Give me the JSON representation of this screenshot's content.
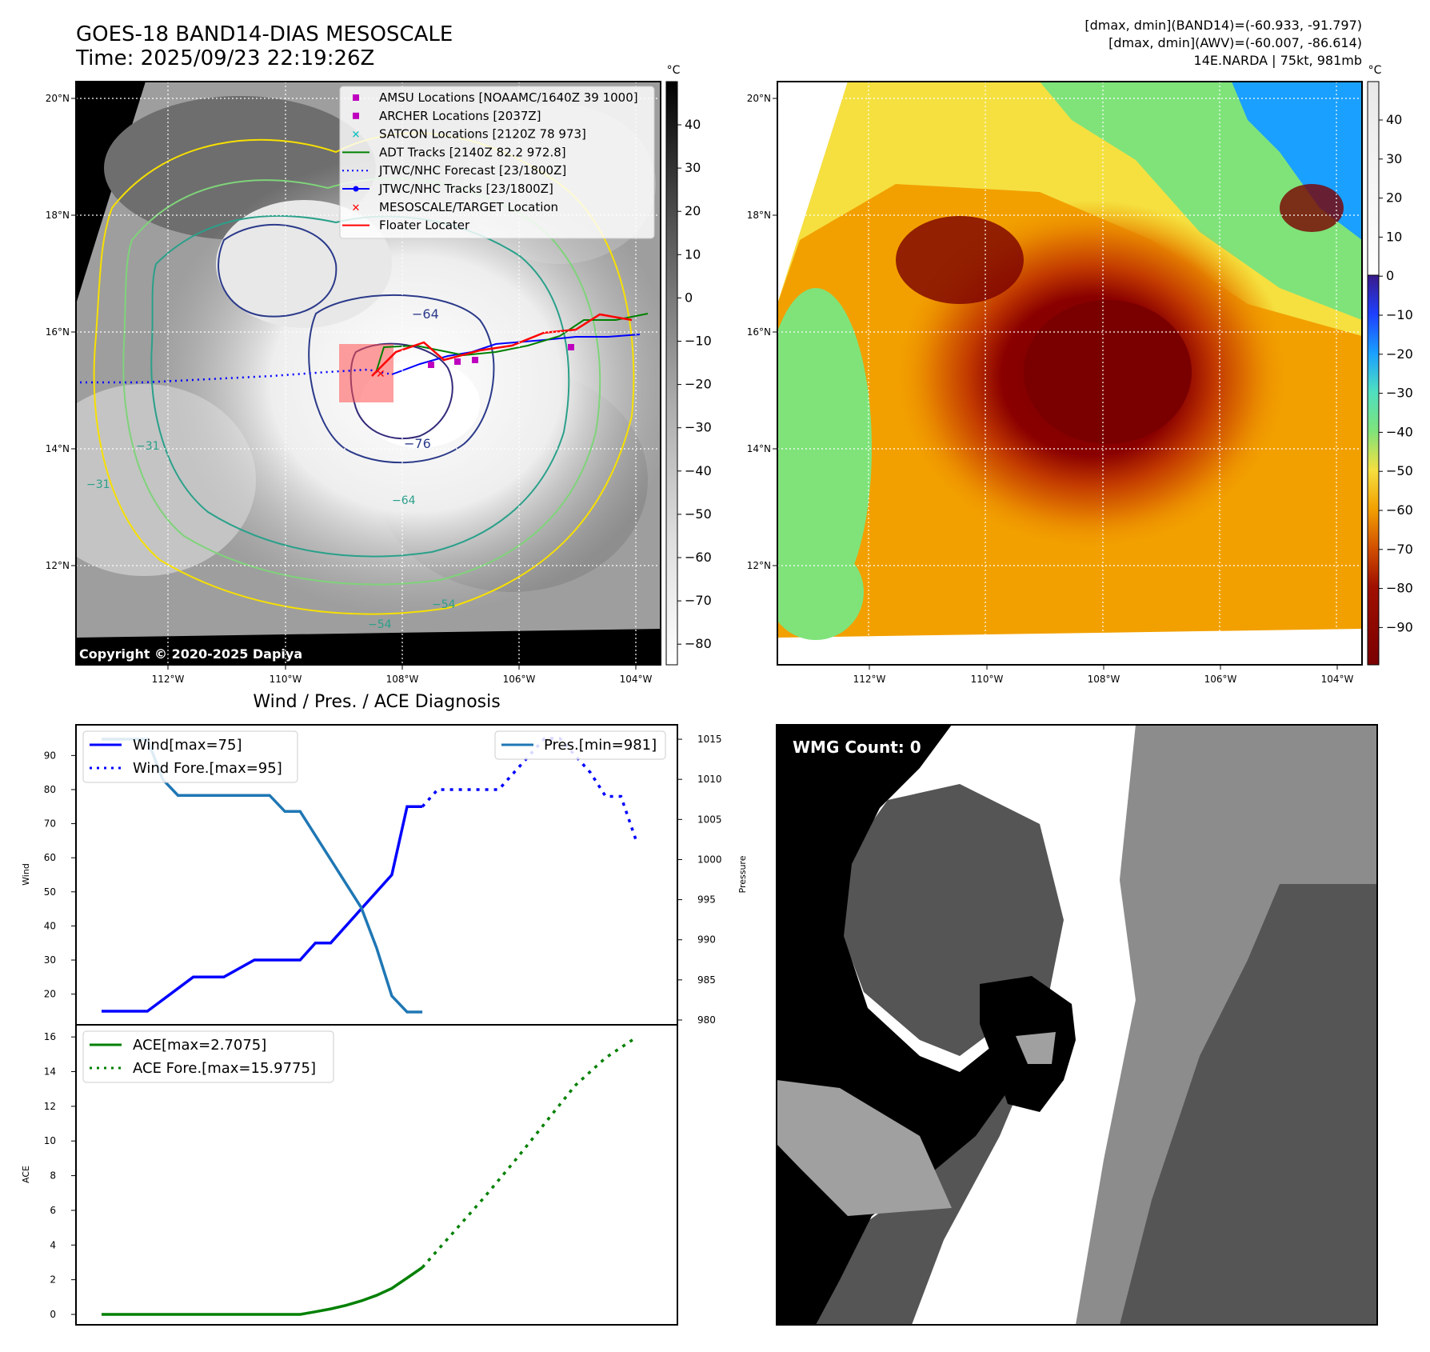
{
  "header": {
    "title_line1": "GOES-18 BAND14-DIAS MESOSCALE",
    "title_line2": "Time: 2025/09/23 22:19:26Z",
    "info_line1": "[dmax, dmin](BAND14)=(-60.933, -91.797)",
    "info_line2": "[dmax, dmin](AWV)=(-60.007, -86.614)",
    "info_line3": "14E.NARDA | 75kt, 981mb"
  },
  "copyright": "Copyright © 2020-2025 Dapiya",
  "colors": {
    "wind": "#0000ff",
    "pressure": "#1f77b4",
    "ace": "#008000",
    "ir_brown": "#7a0000",
    "cool_green": "#7fe37a"
  },
  "maps": {
    "lon_ticks": [
      "112°W",
      "110°W",
      "108°W",
      "106°W",
      "104°W"
    ],
    "lat_ticks": [
      "20°N",
      "18°N",
      "16°N",
      "14°N",
      "12°N"
    ],
    "contour_labels": [
      "−64",
      "−76",
      "−31",
      "−31",
      "−64",
      "−54",
      "−54"
    ],
    "left_colorbar": {
      "unit": "°C",
      "ticks": [
        "40",
        "30",
        "20",
        "10",
        "0",
        "−10",
        "−20",
        "−30",
        "−40",
        "−50",
        "−60",
        "−70",
        "−80"
      ]
    },
    "right_colorbar": {
      "unit": "°C",
      "ticks": [
        "40",
        "30",
        "20",
        "10",
        "0",
        "−10",
        "−20",
        "−30",
        "−40",
        "−50",
        "−60",
        "−70",
        "−80",
        "−90"
      ]
    },
    "legend": [
      {
        "label": "AMSU Locations [NOAAMC/1640Z 39 1000]",
        "symbol": "square",
        "color": "#bf00bf"
      },
      {
        "label": "ARCHER Locations [2037Z]",
        "symbol": "square",
        "color": "#bf00bf"
      },
      {
        "label": "SATCON Locations [2120Z 78 973]",
        "symbol": "x",
        "color": "#00bfbf"
      },
      {
        "label": "ADT Tracks [2140Z 82.2 972.8]",
        "symbol": "line",
        "color": "#008000"
      },
      {
        "label": "JTWC/NHC Forecast [23/1800Z]",
        "symbol": "dotted",
        "color": "#0000ff"
      },
      {
        "label": "JTWC/NHC Tracks [23/1800Z]",
        "symbol": "line-dot",
        "color": "#0000ff"
      },
      {
        "label": "MESOSCALE/TARGET Location",
        "symbol": "x",
        "color": "#ff0000"
      },
      {
        "label": "Floater Locater",
        "symbol": "line",
        "color": "#ff0000"
      }
    ]
  },
  "chart_data": [
    {
      "type": "line",
      "title": "Wind / Pres. / ACE Diagnosis",
      "ylabel": "Wind",
      "y2label": "Pressure",
      "ylim": [
        11,
        99
      ],
      "y2lim": [
        979.4,
        1016.8
      ],
      "yticks": [
        20,
        30,
        40,
        50,
        60,
        70,
        80,
        90
      ],
      "y2ticks": [
        980,
        985,
        990,
        995,
        1000,
        1005,
        1010,
        1015
      ],
      "series": [
        {
          "name": "Wind[max=75]",
          "style": "solid",
          "axis": "left",
          "x": [
            0,
            3,
            6,
            8,
            10,
            13,
            14,
            15,
            17,
            19,
            20,
            21
          ],
          "values": [
            15,
            15,
            25,
            25,
            30,
            30,
            35,
            35,
            45,
            55,
            75,
            75
          ]
        },
        {
          "name": "Wind Fore.[max=95]",
          "style": "dotted",
          "axis": "left",
          "x": [
            21,
            22,
            26,
            27,
            28,
            29,
            30,
            31,
            32,
            33,
            34,
            35
          ],
          "values": [
            75,
            80,
            80,
            85,
            90,
            95,
            95,
            90,
            85,
            78,
            78,
            65
          ]
        },
        {
          "name": "Pres.[min=981]",
          "style": "solid",
          "axis": "right",
          "x": [
            0,
            3,
            4,
            5,
            11,
            12,
            13,
            15,
            17,
            18,
            19,
            20,
            21
          ],
          "values": [
            1015,
            1015,
            1010,
            1008,
            1008,
            1006,
            1006,
            1000,
            994,
            989,
            983,
            981,
            981
          ]
        }
      ]
    },
    {
      "type": "line",
      "ylabel": "ACE",
      "ylim": [
        -0.6,
        16.7
      ],
      "yticks": [
        0,
        2,
        4,
        6,
        8,
        10,
        12,
        14,
        16
      ],
      "series": [
        {
          "name": "ACE[max=2.7075]",
          "style": "solid",
          "x": [
            0,
            4,
            8,
            10,
            11,
            12,
            13,
            14,
            15,
            16,
            17,
            18,
            19,
            20,
            21
          ],
          "values": [
            0,
            0,
            0,
            0,
            0,
            0,
            0,
            0.15,
            0.32,
            0.52,
            0.78,
            1.1,
            1.5,
            2.1,
            2.7075
          ]
        },
        {
          "name": "ACE Fore.[max=15.9775]",
          "style": "dotted",
          "x": [
            21,
            23,
            25,
            27,
            29,
            31,
            33,
            35
          ],
          "values": [
            2.7075,
            4.7,
            6.7,
            8.8,
            11.0,
            13.2,
            14.8,
            15.9775
          ]
        }
      ]
    }
  ],
  "wmg": {
    "label": "WMG Count: 0"
  }
}
